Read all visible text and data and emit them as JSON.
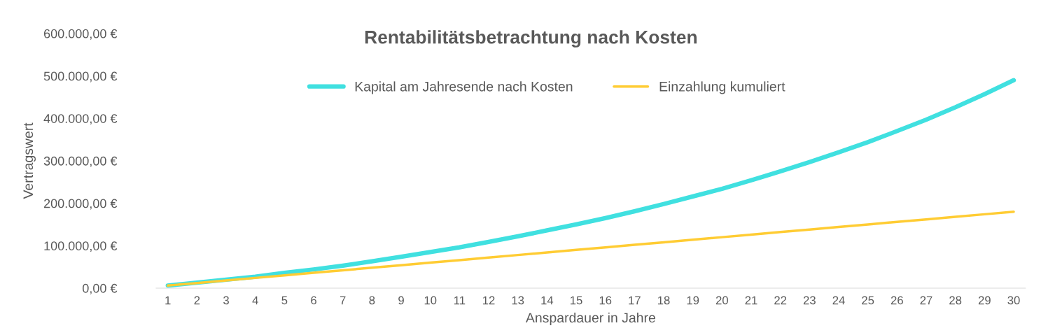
{
  "chart_data": {
    "type": "line",
    "title": "Rentabilitätsbetrachtung nach Kosten",
    "xlabel": "Anspardauer in Jahre",
    "ylabel": "Vertragswert",
    "categories": [
      "1",
      "2",
      "3",
      "4",
      "5",
      "6",
      "7",
      "8",
      "9",
      "10",
      "11",
      "12",
      "13",
      "14",
      "15",
      "16",
      "17",
      "18",
      "19",
      "20",
      "21",
      "22",
      "23",
      "24",
      "25",
      "26",
      "27",
      "28",
      "29",
      "30"
    ],
    "series": [
      {
        "name": "Kapital am Jahresende nach Kosten",
        "color": "#40e0e0",
        "values": [
          6000,
          13000,
          20000,
          27000,
          36000,
          44000,
          53000,
          63000,
          74000,
          85000,
          96000,
          109000,
          122000,
          136000,
          150000,
          165000,
          181000,
          198000,
          216000,
          234000,
          254000,
          275000,
          297000,
          320000,
          344000,
          370000,
          397000,
          426000,
          457000,
          490000
        ]
      },
      {
        "name": "Einzahlung kumuliert",
        "color": "#ffcc33",
        "values": [
          6000,
          12000,
          18000,
          24000,
          30000,
          36000,
          42000,
          48000,
          54000,
          60000,
          66000,
          72000,
          78000,
          84000,
          90000,
          96000,
          102000,
          108000,
          114000,
          120000,
          126000,
          132000,
          138000,
          144000,
          150000,
          156000,
          162000,
          168000,
          174000,
          180000
        ]
      }
    ],
    "ylim": [
      0,
      600000
    ],
    "yticks": [
      {
        "value": 0,
        "label": "0,00 €"
      },
      {
        "value": 100000,
        "label": "100.000,00 €"
      },
      {
        "value": 200000,
        "label": "200.000,00 €"
      },
      {
        "value": 300000,
        "label": "300.000,00 €"
      },
      {
        "value": 400000,
        "label": "400.000,00 €"
      },
      {
        "value": 500000,
        "label": "500.000,00 €"
      },
      {
        "value": 600000,
        "label": "600.000,00 €"
      }
    ],
    "grid": false,
    "legend": "top",
    "marker": "none",
    "line_style": "solid"
  }
}
